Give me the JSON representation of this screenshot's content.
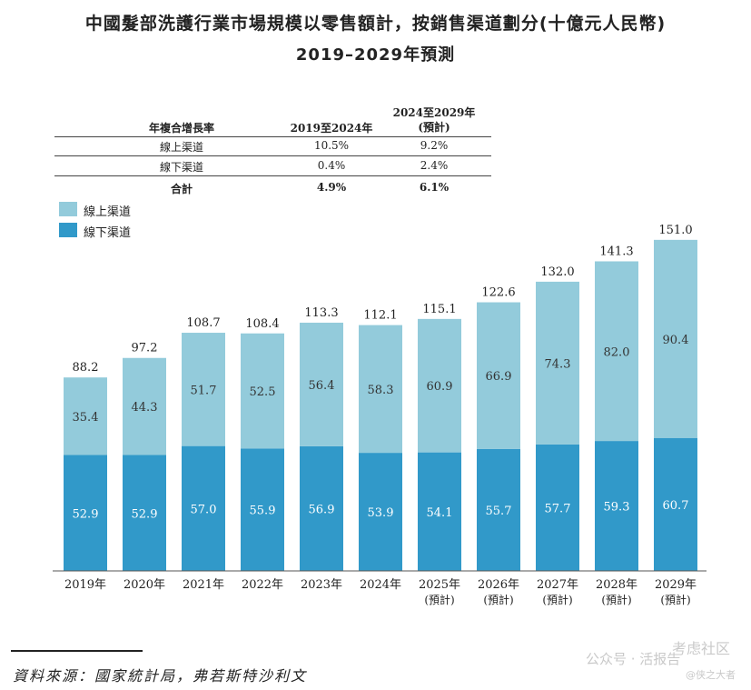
{
  "title_line1": "中國髮部洗護行業市場規模以零售額計，按銷售渠道劃分(十億元人民幣)",
  "title_line2": "2019–2029年預測",
  "cagr_table": {
    "header_label": "年複合增長率",
    "col1_header": "2019至2024年",
    "col2_header_line1": "2024至2029年",
    "col2_header_line2": "(預計)",
    "rows": [
      {
        "label": "線上渠道",
        "v1": "10.5%",
        "v2": "9.2%"
      },
      {
        "label": "線下渠道",
        "v1": "0.4%",
        "v2": "2.4%"
      }
    ],
    "total": {
      "label": "合計",
      "v1": "4.9%",
      "v2": "6.1%"
    }
  },
  "legend": {
    "online": "線上渠道",
    "offline": "線下渠道"
  },
  "colors": {
    "online": "#93cbdb",
    "offline": "#3199c9"
  },
  "chart_data": {
    "type": "bar",
    "stacked": true,
    "categories": [
      "2019年",
      "2020年",
      "2021年",
      "2022年",
      "2023年",
      "2024年",
      "2025年",
      "2026年",
      "2027年",
      "2028年",
      "2029年"
    ],
    "category_notes": [
      "",
      "",
      "",
      "",
      "",
      "",
      "(預計)",
      "(預計)",
      "(預計)",
      "(預計)",
      "(預計)"
    ],
    "series": [
      {
        "name": "線下渠道",
        "values": [
          52.9,
          52.9,
          57.0,
          55.9,
          56.9,
          53.9,
          54.1,
          55.7,
          57.7,
          59.3,
          60.7
        ]
      },
      {
        "name": "線上渠道",
        "values": [
          35.4,
          44.3,
          51.7,
          52.5,
          56.4,
          58.3,
          60.9,
          66.9,
          74.3,
          82.0,
          90.4
        ]
      }
    ],
    "totals": [
      88.2,
      97.2,
      108.7,
      108.4,
      113.3,
      112.1,
      115.1,
      122.6,
      132.0,
      141.3,
      151.0
    ],
    "series_labels": {
      "線下渠道": [
        "52.9",
        "52.9",
        "57.0",
        "55.9",
        "56.9",
        "53.9",
        "54.1",
        "55.7",
        "57.7",
        "59.3",
        "60.7"
      ],
      "線上渠道": [
        "35.4",
        "44.3",
        "51.7",
        "52.5",
        "56.4",
        "58.3",
        "60.9",
        "66.9",
        "74.3",
        "82.0",
        "90.4"
      ]
    },
    "total_labels": [
      "88.2",
      "97.2",
      "108.7",
      "108.4",
      "113.3",
      "112.1",
      "115.1",
      "122.6",
      "132.0",
      "141.3",
      "151.0"
    ],
    "unit": "十億元人民幣",
    "ylim": [
      0,
      151
    ]
  },
  "source": "資料來源：國家統計局，弗若斯特沙利文",
  "watermark": {
    "wechat": "公众号 · 活报告",
    "site": "考虑社区",
    "author": "@侠之大者"
  }
}
